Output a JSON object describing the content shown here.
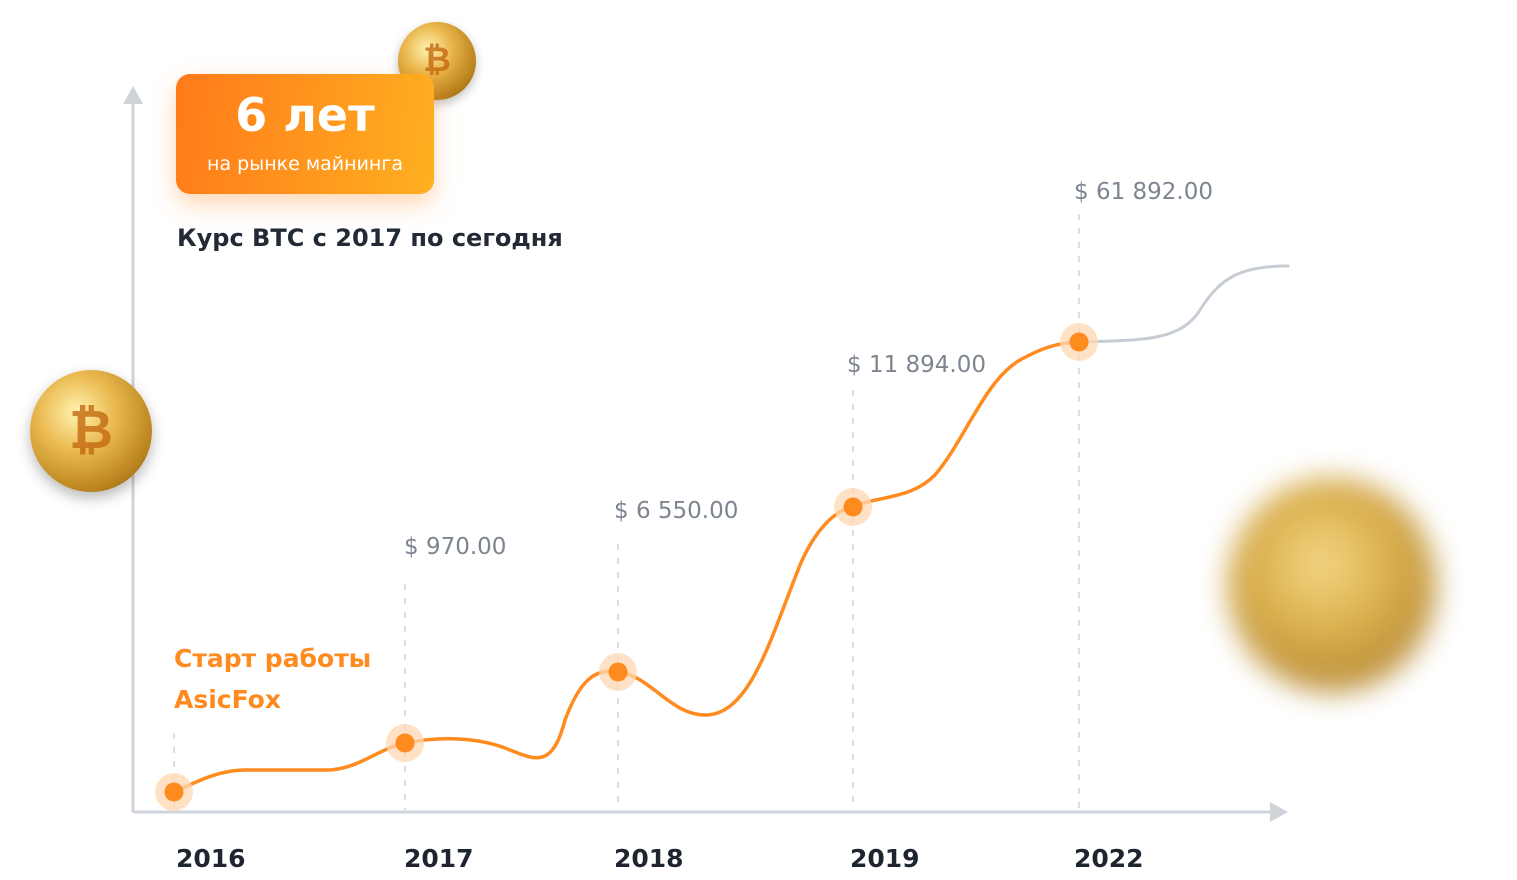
{
  "badge": {
    "years": "6 лет",
    "subtitle": "на рынке майнинга"
  },
  "start_label": {
    "line1": "Старт работы",
    "line2": "AsicFox"
  },
  "coin_icon_glyph": "₿",
  "colors": {
    "accent": "#ff8a1e",
    "accent_light": "#ffd8b3",
    "axis": "#cfd4db",
    "grid": "#dadde2",
    "price_text": "#7d8591",
    "year_text": "#1e2530",
    "future_line": "#c6ccd4"
  },
  "chart_data": {
    "type": "line",
    "title": "Курс BTC с 2017 по сегодня",
    "categories": [
      "2016",
      "2017",
      "2018",
      "2019",
      "2022"
    ],
    "series": [
      {
        "values": [
          0,
          970,
          6550,
          11894,
          61892
        ]
      }
    ],
    "data_labels": [
      "",
      "$ 970.00",
      "$ 6 550.00",
      "$ 11 894.00",
      "$ 61 892.00"
    ],
    "grid": false,
    "legend": "none"
  }
}
